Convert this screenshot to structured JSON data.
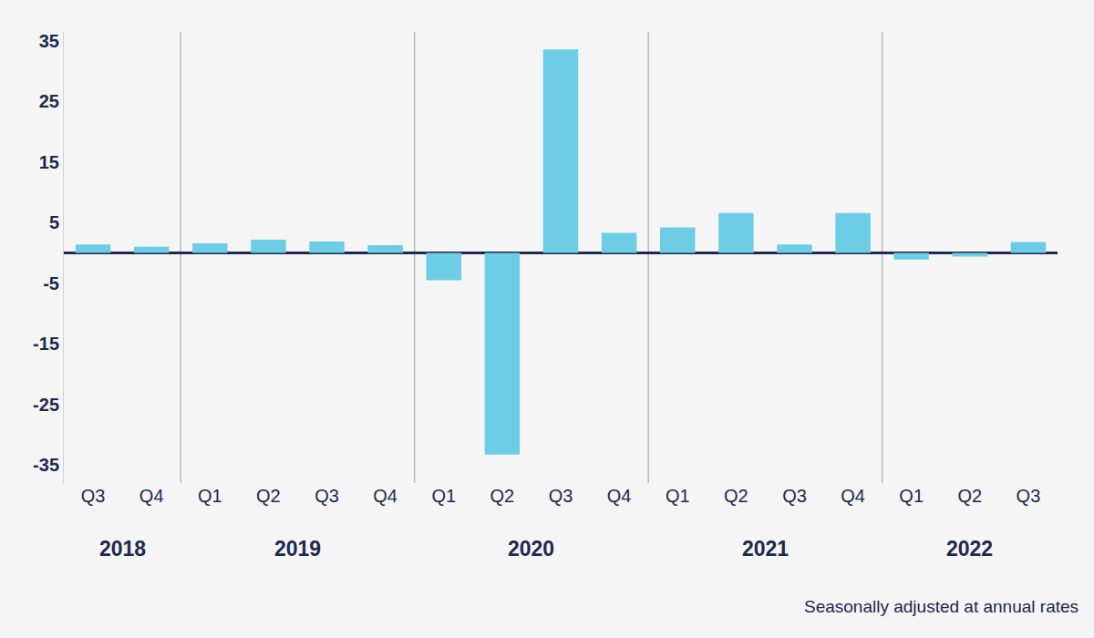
{
  "chart_data": {
    "type": "bar",
    "categories": [
      "Q3",
      "Q4",
      "Q1",
      "Q2",
      "Q3",
      "Q4",
      "Q1",
      "Q2",
      "Q3",
      "Q4",
      "Q1",
      "Q2",
      "Q3",
      "Q4",
      "Q1",
      "Q2",
      "Q3"
    ],
    "years": [
      "2018",
      "2018",
      "2019",
      "2019",
      "2019",
      "2019",
      "2020",
      "2020",
      "2020",
      "2020",
      "2021",
      "2021",
      "2021",
      "2021",
      "2022",
      "2022",
      "2022"
    ],
    "values": [
      1.4,
      1.0,
      1.6,
      2.2,
      1.9,
      1.3,
      -4.5,
      -33.3,
      33.6,
      3.3,
      4.2,
      6.6,
      1.4,
      6.6,
      -1.1,
      -0.6,
      1.8
    ],
    "color": "#6ecde6",
    "ylim": [
      -38,
      36.5
    ],
    "yticks": [
      -35,
      -25,
      -15,
      -5,
      5,
      15,
      25,
      35
    ],
    "grid": false,
    "annotation": "Seasonally adjusted at annual rates"
  }
}
